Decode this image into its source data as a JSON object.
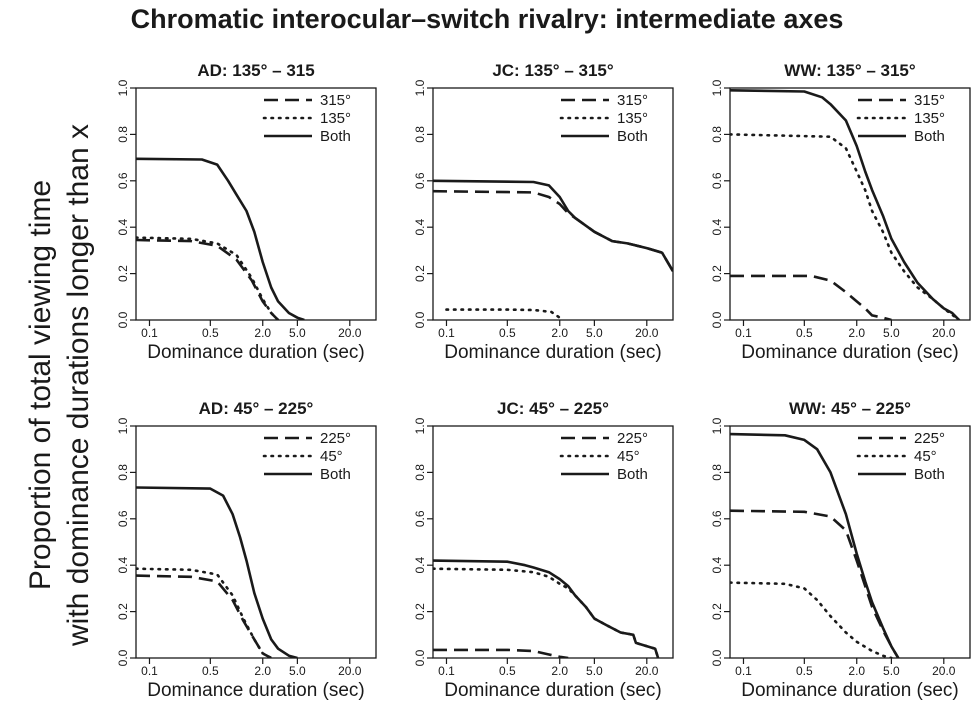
{
  "figure": {
    "title": "Chromatic interocular–switch rivalry: intermediate axes",
    "ylabel_line1": "Proportion of total viewing time",
    "ylabel_line2": "with dominance durations longer than x"
  },
  "chart_data": [
    {
      "type": "line",
      "title": "AD: 135° – 315",
      "xlabel": "Dominance duration (sec)",
      "xscale": "log",
      "xticks": [
        "0.1",
        "0.5",
        "2.0",
        "5.0",
        "20.0"
      ],
      "yticks": [
        "0.0",
        "0.2",
        "0.4",
        "0.6",
        "0.8",
        "1.0"
      ],
      "ylim": [
        0,
        1
      ],
      "legend_position": "top-right",
      "series": [
        {
          "name": "315°",
          "style": "dashed",
          "x": [
            0.07,
            0.3,
            0.6,
            1.0,
            1.5,
            2.0,
            2.5,
            3.0
          ],
          "y": [
            0.345,
            0.34,
            0.32,
            0.26,
            0.17,
            0.08,
            0.03,
            0.0
          ]
        },
        {
          "name": "135°",
          "style": "dotted",
          "x": [
            0.07,
            0.3,
            0.6,
            1.0,
            1.5,
            2.0,
            2.5,
            3.0
          ],
          "y": [
            0.355,
            0.35,
            0.33,
            0.28,
            0.18,
            0.09,
            0.03,
            0.0
          ]
        },
        {
          "name": "Both",
          "style": "solid",
          "x": [
            0.07,
            0.4,
            0.6,
            0.8,
            1.0,
            1.3,
            1.6,
            2.0,
            2.5,
            3.0,
            4.0,
            5.0,
            6.0
          ],
          "y": [
            0.695,
            0.692,
            0.67,
            0.6,
            0.54,
            0.47,
            0.38,
            0.25,
            0.14,
            0.08,
            0.03,
            0.01,
            0.0
          ]
        }
      ]
    },
    {
      "type": "line",
      "title": "JC: 135° – 315°",
      "xlabel": "Dominance duration (sec)",
      "xscale": "log",
      "xticks": [
        "0.1",
        "0.5",
        "2.0",
        "5.0",
        "20.0"
      ],
      "yticks": [
        "0.0",
        "0.2",
        "0.4",
        "0.6",
        "0.8",
        "1.0"
      ],
      "ylim": [
        0,
        1
      ],
      "legend_position": "top-right",
      "series": [
        {
          "name": "315°",
          "style": "dashed",
          "x": [
            0.07,
            1.0,
            1.5,
            2.0,
            2.5,
            3.0,
            5.0,
            8.0,
            12.0,
            20.0,
            30.0,
            40.0
          ],
          "y": [
            0.555,
            0.55,
            0.53,
            0.5,
            0.46,
            0.44,
            0.38,
            0.34,
            0.33,
            0.31,
            0.29,
            0.21
          ]
        },
        {
          "name": "135°",
          "style": "dotted",
          "x": [
            0.1,
            0.5,
            1.0,
            1.6,
            2.0,
            2.2
          ],
          "y": [
            0.045,
            0.045,
            0.043,
            0.035,
            0.01,
            0.0
          ]
        },
        {
          "name": "Both",
          "style": "solid",
          "x": [
            0.07,
            1.0,
            1.5,
            2.0,
            2.5,
            3.0,
            5.0,
            8.0,
            12.0,
            20.0,
            30.0,
            40.0
          ],
          "y": [
            0.6,
            0.595,
            0.58,
            0.53,
            0.47,
            0.44,
            0.38,
            0.34,
            0.33,
            0.31,
            0.29,
            0.21
          ]
        }
      ]
    },
    {
      "type": "line",
      "title": "WW: 135° – 315°",
      "xlabel": "Dominance duration (sec)",
      "xscale": "log",
      "xticks": [
        "0.1",
        "0.5",
        "2.0",
        "5.0",
        "20.0"
      ],
      "yticks": [
        "0.0",
        "0.2",
        "0.4",
        "0.6",
        "0.8",
        "1.0"
      ],
      "ylim": [
        0,
        1
      ],
      "legend_position": "top-right",
      "series": [
        {
          "name": "315°",
          "style": "dashed",
          "x": [
            0.07,
            0.6,
            1.0,
            1.5,
            2.0,
            2.5,
            3.0,
            4.0,
            5.0
          ],
          "y": [
            0.19,
            0.19,
            0.17,
            0.12,
            0.08,
            0.05,
            0.02,
            0.01,
            0.0
          ]
        },
        {
          "name": "135°",
          "style": "dotted",
          "x": [
            0.07,
            1.0,
            1.5,
            2.0,
            2.5,
            3.0,
            4.0,
            5.0,
            7.0,
            10.0,
            15.0,
            20.0,
            30.0
          ],
          "y": [
            0.8,
            0.79,
            0.74,
            0.64,
            0.56,
            0.47,
            0.38,
            0.29,
            0.21,
            0.14,
            0.09,
            0.05,
            0.0
          ]
        },
        {
          "name": "Both",
          "style": "solid",
          "x": [
            0.07,
            0.5,
            0.8,
            1.0,
            1.5,
            2.0,
            2.5,
            3.0,
            4.0,
            5.0,
            7.0,
            10.0,
            15.0,
            20.0,
            25.0,
            30.0
          ],
          "y": [
            0.99,
            0.985,
            0.96,
            0.93,
            0.86,
            0.75,
            0.64,
            0.56,
            0.45,
            0.35,
            0.25,
            0.16,
            0.09,
            0.05,
            0.03,
            0.0
          ]
        }
      ]
    },
    {
      "type": "line",
      "title": "AD: 45° – 225°",
      "xlabel": "Dominance duration (sec)",
      "xscale": "log",
      "xticks": [
        "0.1",
        "0.5",
        "2.0",
        "5.0",
        "20.0"
      ],
      "yticks": [
        "0.0",
        "0.2",
        "0.4",
        "0.6",
        "0.8",
        "1.0"
      ],
      "ylim": [
        0,
        1
      ],
      "legend_position": "top-right",
      "series": [
        {
          "name": "225°",
          "style": "dashed",
          "x": [
            0.07,
            0.3,
            0.6,
            0.9,
            1.2,
            1.6,
            2.0,
            2.5
          ],
          "y": [
            0.355,
            0.35,
            0.33,
            0.25,
            0.16,
            0.08,
            0.02,
            0.0
          ]
        },
        {
          "name": "45°",
          "style": "dotted",
          "x": [
            0.07,
            0.3,
            0.6,
            0.9,
            1.2,
            1.6,
            2.0,
            2.5
          ],
          "y": [
            0.385,
            0.38,
            0.36,
            0.27,
            0.17,
            0.08,
            0.02,
            0.0
          ]
        },
        {
          "name": "Both",
          "style": "solid",
          "x": [
            0.07,
            0.5,
            0.7,
            0.9,
            1.1,
            1.3,
            1.6,
            2.0,
            2.5,
            3.0,
            4.0,
            5.0
          ],
          "y": [
            0.735,
            0.73,
            0.7,
            0.62,
            0.52,
            0.42,
            0.28,
            0.17,
            0.08,
            0.04,
            0.01,
            0.0
          ]
        }
      ]
    },
    {
      "type": "line",
      "title": "JC: 45° – 225°",
      "xlabel": "Dominance duration (sec)",
      "xscale": "log",
      "xticks": [
        "0.1",
        "0.5",
        "2.0",
        "5.0",
        "20.0"
      ],
      "yticks": [
        "0.0",
        "0.2",
        "0.4",
        "0.6",
        "0.8",
        "1.0"
      ],
      "ylim": [
        0,
        1
      ],
      "legend_position": "top-right",
      "series": [
        {
          "name": "225°",
          "style": "dashed",
          "x": [
            0.07,
            0.5,
            1.0,
            1.5,
            2.0,
            2.5
          ],
          "y": [
            0.035,
            0.035,
            0.03,
            0.015,
            0.005,
            0.0
          ]
        },
        {
          "name": "45°",
          "style": "dotted",
          "x": [
            0.07,
            0.5,
            1.0,
            1.5,
            2.0,
            2.5,
            3.0,
            4.0,
            5.0,
            7.0,
            10.0,
            14.0,
            15.0,
            25.0,
            27.0
          ],
          "y": [
            0.385,
            0.38,
            0.37,
            0.35,
            0.32,
            0.3,
            0.27,
            0.22,
            0.17,
            0.14,
            0.11,
            0.1,
            0.065,
            0.04,
            0.0
          ]
        },
        {
          "name": "Both",
          "style": "solid",
          "x": [
            0.07,
            0.5,
            0.8,
            1.0,
            1.5,
            2.0,
            2.5,
            3.0,
            4.0,
            5.0,
            7.0,
            10.0,
            14.0,
            15.0,
            25.0,
            27.0
          ],
          "y": [
            0.42,
            0.415,
            0.4,
            0.39,
            0.37,
            0.34,
            0.31,
            0.27,
            0.22,
            0.17,
            0.14,
            0.11,
            0.1,
            0.065,
            0.04,
            0.0
          ]
        }
      ]
    },
    {
      "type": "line",
      "title": "WW: 45° – 225°",
      "xlabel": "Dominance duration (sec)",
      "xscale": "log",
      "xticks": [
        "0.1",
        "0.5",
        "2.0",
        "5.0",
        "20.0"
      ],
      "yticks": [
        "0.0",
        "0.2",
        "0.4",
        "0.6",
        "0.8",
        "1.0"
      ],
      "ylim": [
        0,
        1
      ],
      "legend_position": "top-right",
      "series": [
        {
          "name": "225°",
          "style": "dashed",
          "x": [
            0.07,
            0.5,
            1.0,
            1.5,
            2.0,
            2.5,
            3.0,
            4.0,
            5.0,
            6.0
          ],
          "y": [
            0.635,
            0.63,
            0.61,
            0.55,
            0.42,
            0.31,
            0.22,
            0.12,
            0.05,
            0.0
          ]
        },
        {
          "name": "45°",
          "style": "dotted",
          "x": [
            0.07,
            0.3,
            0.5,
            0.7,
            1.0,
            1.5,
            2.0,
            3.0,
            4.0,
            5.0
          ],
          "y": [
            0.325,
            0.32,
            0.3,
            0.25,
            0.18,
            0.11,
            0.07,
            0.03,
            0.01,
            0.0
          ]
        },
        {
          "name": "Both",
          "style": "solid",
          "x": [
            0.07,
            0.3,
            0.5,
            0.7,
            1.0,
            1.5,
            2.0,
            2.5,
            3.0,
            4.0,
            5.0,
            6.0
          ],
          "y": [
            0.965,
            0.96,
            0.94,
            0.9,
            0.8,
            0.62,
            0.45,
            0.33,
            0.24,
            0.13,
            0.05,
            0.0
          ]
        }
      ]
    }
  ]
}
